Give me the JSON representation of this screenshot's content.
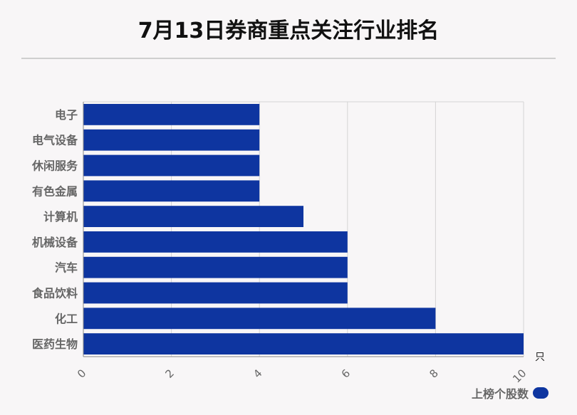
{
  "header": {
    "title": "7月13日券商重点关注行业排名"
  },
  "chart_data": {
    "type": "bar",
    "orientation": "horizontal",
    "categories": [
      "电子",
      "电气设备",
      "休闲服务",
      "有色金属",
      "计算机",
      "机械设备",
      "汽车",
      "食品饮料",
      "化工",
      "医药生物"
    ],
    "series": [
      {
        "name": "上榜个股数",
        "values": [
          4,
          4,
          4,
          4,
          5,
          6,
          6,
          6,
          8,
          10
        ]
      }
    ],
    "xlim": [
      0,
      10
    ],
    "xticks": [
      "0",
      "2",
      "4",
      "6",
      "8",
      "10"
    ],
    "xunit": "只",
    "grid": true,
    "legend": "bottom-right",
    "color": "#0e35a0"
  }
}
